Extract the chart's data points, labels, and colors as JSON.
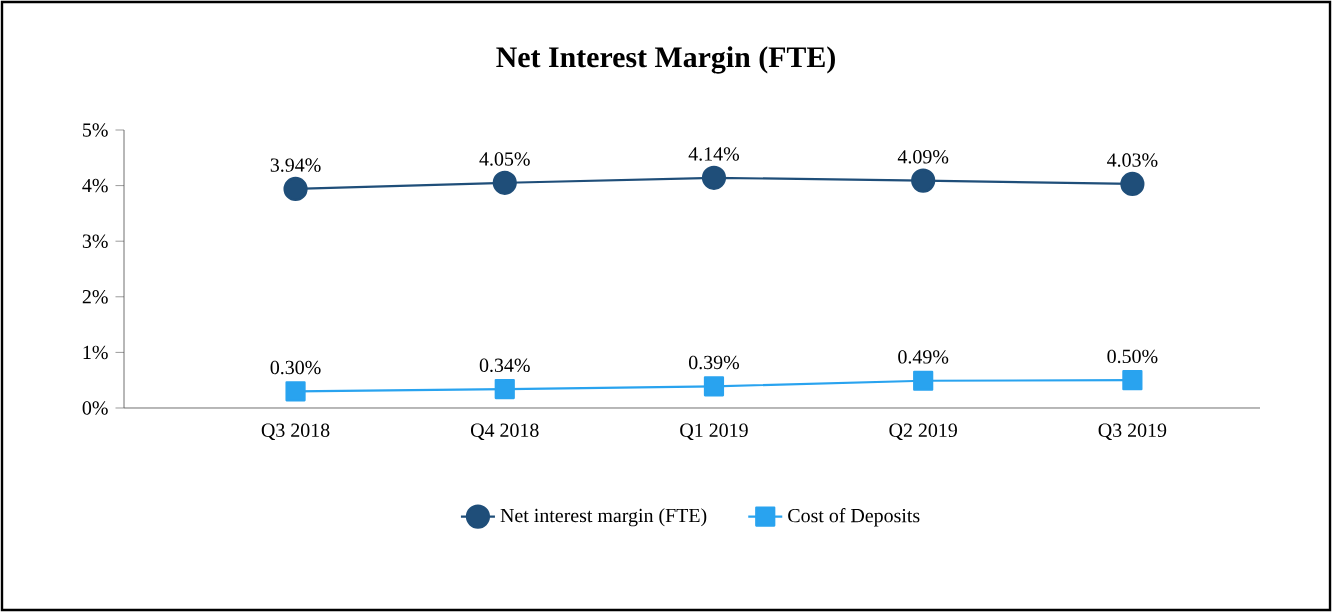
{
  "chart_data": {
    "type": "line",
    "title": "Net Interest Margin (FTE)",
    "categories": [
      "Q3 2018",
      "Q4 2018",
      "Q1 2019",
      "Q2 2019",
      "Q3 2019"
    ],
    "series": [
      {
        "name": "Net interest margin (FTE)",
        "color": "#1f4e79",
        "marker": "circle",
        "values": [
          3.94,
          4.05,
          4.14,
          4.09,
          4.03
        ],
        "value_labels": [
          "3.94%",
          "4.05%",
          "4.14%",
          "4.09%",
          "4.03%"
        ]
      },
      {
        "name": "Cost of Deposits",
        "color": "#29a3ef",
        "marker": "square",
        "values": [
          0.3,
          0.34,
          0.39,
          0.49,
          0.5
        ],
        "value_labels": [
          "0.30%",
          "0.34%",
          "0.39%",
          "0.49%",
          "0.50%"
        ]
      }
    ],
    "ylim": [
      0,
      5
    ],
    "yticks": [
      {
        "value": 0,
        "label": "0%"
      },
      {
        "value": 1,
        "label": "1%"
      },
      {
        "value": 2,
        "label": "2%"
      },
      {
        "value": 3,
        "label": "3%"
      },
      {
        "value": 4,
        "label": "4%"
      },
      {
        "value": 5,
        "label": "5%"
      }
    ],
    "grid": false,
    "legend": "bottom"
  }
}
